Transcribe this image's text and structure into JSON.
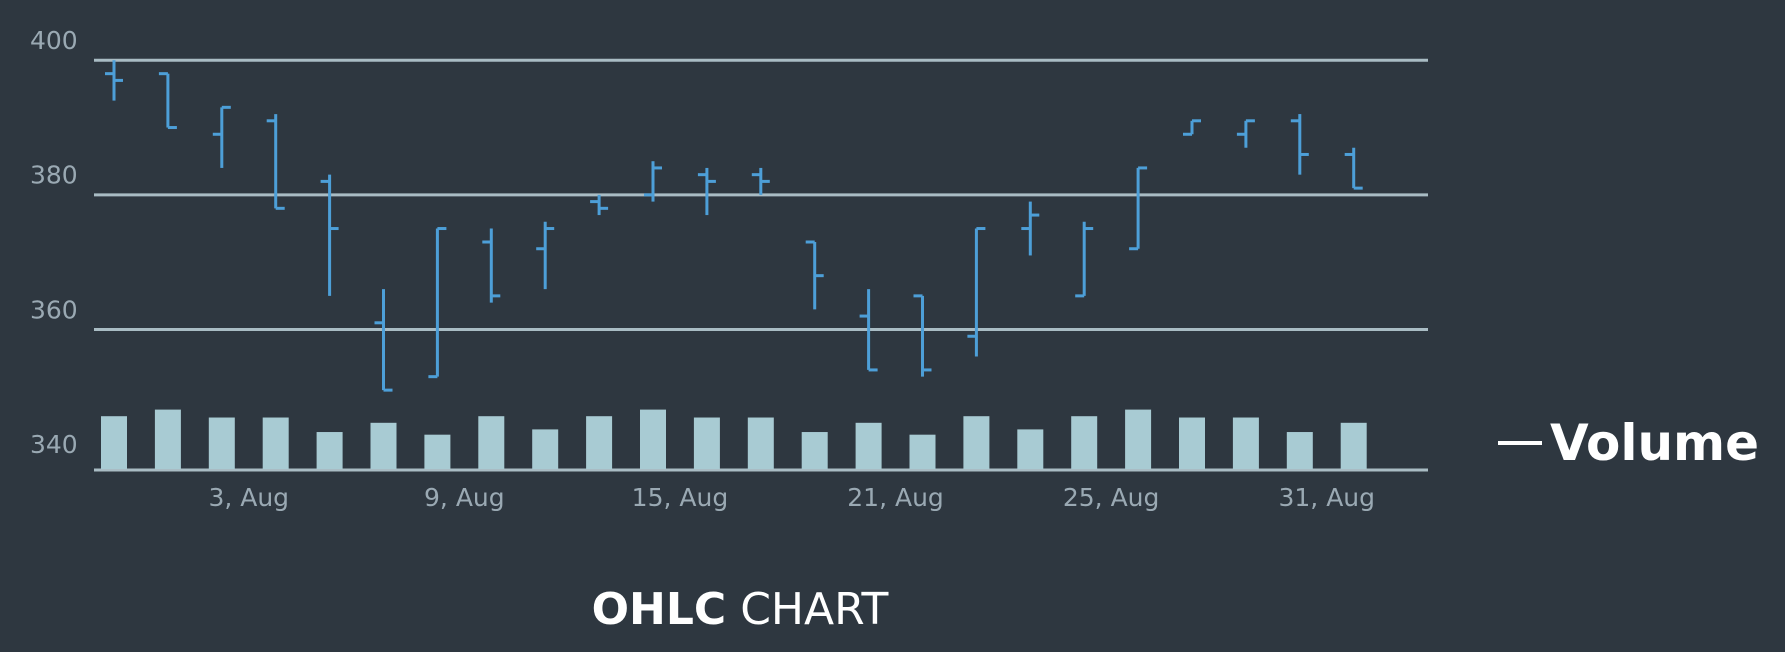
{
  "chart_data": {
    "type": "ohlc",
    "title_bold": "OHLC",
    "title_rest": "CHART",
    "y_ticks": [
      400,
      380,
      360,
      340
    ],
    "ylim": [
      340,
      400
    ],
    "x_tick_labels": [
      "3, Aug",
      "9, Aug",
      "15, Aug",
      "21, Aug",
      "25, Aug",
      "31, Aug"
    ],
    "x_tick_bar_index": [
      2.5,
      6.5,
      10.5,
      14.5,
      18.5,
      22.5
    ],
    "gridlines": [
      397,
      377,
      357
    ],
    "legend": "Volume",
    "colors": {
      "ohlc": "#4d9fd8",
      "volume": "#a8cbd3",
      "grid": "#a9bcc4",
      "background": "#2e3740"
    },
    "bars": [
      {
        "open": 395,
        "high": 397,
        "low": 391,
        "close": 394
      },
      {
        "open": 395,
        "high": 395,
        "low": 387,
        "close": 387
      },
      {
        "open": 386,
        "high": 390,
        "low": 381,
        "close": 390
      },
      {
        "open": 388,
        "high": 389,
        "low": 375,
        "close": 375
      },
      {
        "open": 379,
        "high": 380,
        "low": 362,
        "close": 372
      },
      {
        "open": 358,
        "high": 363,
        "low": 348,
        "close": 348
      },
      {
        "open": 350,
        "high": 372,
        "low": 350,
        "close": 372
      },
      {
        "open": 370,
        "high": 372,
        "low": 361,
        "close": 362
      },
      {
        "open": 369,
        "high": 373,
        "low": 363,
        "close": 372
      },
      {
        "open": 376,
        "high": 377,
        "low": 374,
        "close": 375
      },
      {
        "open": 377,
        "high": 382,
        "low": 376,
        "close": 381
      },
      {
        "open": 380,
        "high": 381,
        "low": 374,
        "close": 379
      },
      {
        "open": 380,
        "high": 381,
        "low": 377,
        "close": 379
      },
      {
        "open": 370,
        "high": 370,
        "low": 360,
        "close": 365
      },
      {
        "open": 359,
        "high": 363,
        "low": 351,
        "close": 351
      },
      {
        "open": 362,
        "high": 362,
        "low": 350,
        "close": 351
      },
      {
        "open": 356,
        "high": 372,
        "low": 353,
        "close": 372
      },
      {
        "open": 372,
        "high": 376,
        "low": 368,
        "close": 374
      },
      {
        "open": 362,
        "high": 373,
        "low": 362,
        "close": 372
      },
      {
        "open": 369,
        "high": 381,
        "low": 369,
        "close": 381
      },
      {
        "open": 386,
        "high": 388,
        "low": 386,
        "close": 388
      },
      {
        "open": 386,
        "high": 388,
        "low": 384,
        "close": 388
      },
      {
        "open": 388,
        "high": 389,
        "low": 380,
        "close": 383
      },
      {
        "open": 383,
        "high": 384,
        "low": 378,
        "close": 378
      }
    ],
    "volume": [
      8,
      9,
      7.8,
      7.8,
      5.6,
      7,
      5.2,
      8,
      6,
      8,
      9,
      7.8,
      7.8,
      5.6,
      7,
      5.2,
      8,
      6,
      8,
      9,
      7.8,
      7.8,
      5.6,
      7
    ]
  }
}
